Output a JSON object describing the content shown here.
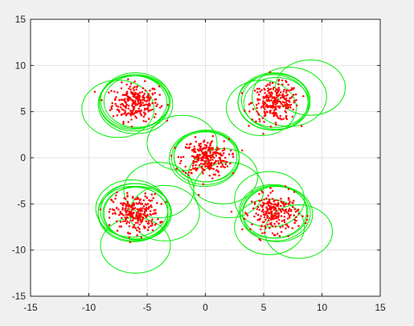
{
  "chart_data": {
    "type": "scatter",
    "xlim": [
      -15,
      15
    ],
    "ylim": [
      -15,
      15
    ],
    "x_ticks": [
      -15,
      -10,
      -5,
      0,
      5,
      10,
      15
    ],
    "y_ticks": [
      -15,
      -10,
      -5,
      0,
      5,
      10,
      15
    ],
    "x_tick_labels": [
      "-15",
      "-10",
      "-5",
      "0",
      "5",
      "10",
      "15"
    ],
    "y_tick_labels": [
      "-15",
      "-10",
      "-5",
      "0",
      "5",
      "10",
      "15"
    ],
    "grid": true,
    "colors": {
      "points": "#ff0000",
      "circles": "#00ee00",
      "background": "#f0f0f0",
      "axes_bg": "#ffffff",
      "grid": "#e3e3e3",
      "axis": "#262626"
    },
    "clusters": [
      {
        "center": [
          -6,
          6
        ],
        "spread": 1.0,
        "count": 260
      },
      {
        "center": [
          6,
          6
        ],
        "spread": 1.0,
        "count": 260
      },
      {
        "center": [
          0,
          0
        ],
        "spread": 1.0,
        "count": 260
      },
      {
        "center": [
          -6,
          -6
        ],
        "spread": 1.0,
        "count": 260
      },
      {
        "center": [
          6,
          -6
        ],
        "spread": 1.0,
        "count": 260
      }
    ],
    "circles": [
      {
        "cx": -6.0,
        "cy": 6.2,
        "r": 3.0
      },
      {
        "cx": -6.2,
        "cy": 6.0,
        "r": 2.9
      },
      {
        "cx": -5.9,
        "cy": 6.1,
        "r": 2.8
      },
      {
        "cx": -6.1,
        "cy": 5.9,
        "r": 3.0
      },
      {
        "cx": -7.5,
        "cy": 5.3,
        "r": 3.1
      },
      {
        "cx": -6.0,
        "cy": 5.8,
        "r": 3.2
      },
      {
        "cx": 5.8,
        "cy": 6.0,
        "r": 3.0
      },
      {
        "cx": 6.0,
        "cy": 6.2,
        "r": 2.9
      },
      {
        "cx": 6.1,
        "cy": 5.9,
        "r": 2.8
      },
      {
        "cx": 5.9,
        "cy": 6.1,
        "r": 3.1
      },
      {
        "cx": 4.8,
        "cy": 5.4,
        "r": 3.0
      },
      {
        "cx": 7.2,
        "cy": 6.6,
        "r": 3.2
      },
      {
        "cx": 9.0,
        "cy": 7.6,
        "r": 3.0
      },
      {
        "cx": 0.0,
        "cy": 0.0,
        "r": 2.9
      },
      {
        "cx": 0.1,
        "cy": 0.2,
        "r": 2.8
      },
      {
        "cx": -0.1,
        "cy": -0.1,
        "r": 3.0
      },
      {
        "cx": 0.0,
        "cy": 0.1,
        "r": 2.7
      },
      {
        "cx": -2.0,
        "cy": 1.6,
        "r": 3.0
      },
      {
        "cx": 1.5,
        "cy": -2.0,
        "r": 3.0
      },
      {
        "cx": 2.0,
        "cy": -3.5,
        "r": 3.0
      },
      {
        "cx": -6.0,
        "cy": -5.8,
        "r": 3.0
      },
      {
        "cx": -5.8,
        "cy": -6.0,
        "r": 2.9
      },
      {
        "cx": -6.2,
        "cy": -6.1,
        "r": 3.0
      },
      {
        "cx": -6.0,
        "cy": -6.0,
        "r": 2.8
      },
      {
        "cx": -6.1,
        "cy": -5.9,
        "r": 3.1
      },
      {
        "cx": -3.5,
        "cy": -6.0,
        "r": 3.0
      },
      {
        "cx": -4.0,
        "cy": -3.5,
        "r": 3.0
      },
      {
        "cx": -6.0,
        "cy": -9.5,
        "r": 3.0
      },
      {
        "cx": -6.3,
        "cy": -5.5,
        "r": 3.1
      },
      {
        "cx": 6.0,
        "cy": -6.0,
        "r": 3.0
      },
      {
        "cx": 5.8,
        "cy": -5.8,
        "r": 2.9
      },
      {
        "cx": 6.2,
        "cy": -6.1,
        "r": 3.0
      },
      {
        "cx": 6.0,
        "cy": -5.9,
        "r": 2.8
      },
      {
        "cx": 5.5,
        "cy": -7.5,
        "r": 3.0
      },
      {
        "cx": 5.5,
        "cy": -4.5,
        "r": 3.0
      },
      {
        "cx": 8.0,
        "cy": -8.0,
        "r": 2.9
      }
    ]
  }
}
